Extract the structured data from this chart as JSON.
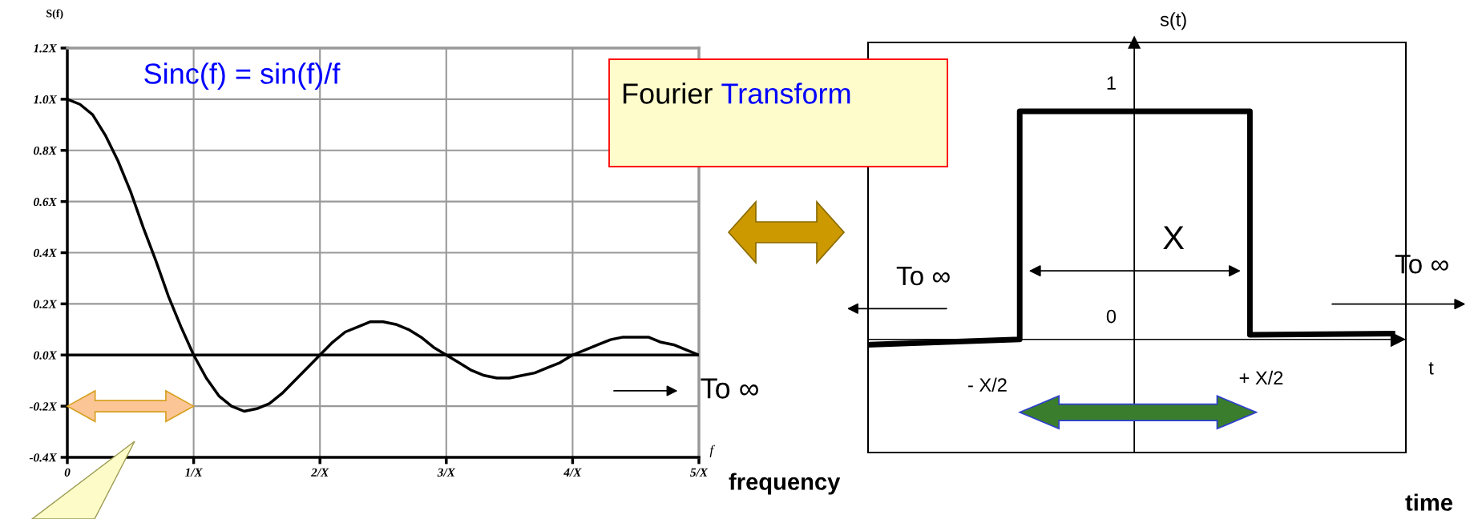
{
  "chart_data": [
    {
      "type": "line",
      "xlabel": "f",
      "ylabel": "S(f)",
      "x": [
        0,
        0.1,
        0.2,
        0.3,
        0.4,
        0.5,
        0.6,
        0.7,
        0.8,
        0.9,
        1.0,
        1.1,
        1.2,
        1.3,
        1.4,
        1.5,
        1.6,
        1.7,
        1.8,
        1.9,
        2.0,
        2.1,
        2.2,
        2.3,
        2.4,
        2.5,
        2.6,
        2.7,
        2.8,
        2.9,
        3.0,
        3.1,
        3.2,
        3.3,
        3.4,
        3.5,
        3.6,
        3.7,
        3.8,
        3.9,
        4.0,
        4.1,
        4.2,
        4.3,
        4.4,
        4.5,
        4.6,
        4.7,
        4.8,
        4.9,
        5.0
      ],
      "series": [
        {
          "color": "#000000",
          "values": [
            1.0,
            0.98,
            0.94,
            0.86,
            0.76,
            0.64,
            0.5,
            0.37,
            0.23,
            0.11,
            0,
            -0.09,
            -0.16,
            -0.2,
            -0.22,
            -0.21,
            -0.19,
            -0.15,
            -0.1,
            -0.05,
            0,
            0.05,
            0.09,
            0.11,
            0.13,
            0.13,
            0.12,
            0.1,
            0.07,
            0.03,
            0,
            -0.03,
            -0.06,
            -0.08,
            -0.09,
            -0.09,
            -0.08,
            -0.07,
            -0.05,
            -0.03,
            0,
            0.02,
            0.04,
            0.06,
            0.07,
            0.07,
            0.07,
            0.05,
            0.04,
            0.02,
            0
          ]
        }
      ],
      "xlim": [
        0,
        5
      ],
      "xticks": [
        0,
        {
          "value": 1,
          "label": "1/X"
        },
        {
          "value": 2,
          "label": "2/X"
        },
        {
          "value": 3,
          "label": "3/X"
        },
        {
          "value": 4,
          "label": "4/X"
        },
        {
          "value": 5,
          "label": "5/X"
        }
      ],
      "ylim": [
        -0.4,
        1.2
      ],
      "yticks": [
        {
          "value": -0.4,
          "label": "-0.4X"
        },
        {
          "value": -0.2,
          "label": "-0.2X"
        },
        {
          "value": 0,
          "label": "0.0X"
        },
        {
          "value": 0.2,
          "label": "0.2X"
        },
        {
          "value": 0.4,
          "label": "0.4X"
        },
        {
          "value": 0.6,
          "label": "0.6X"
        },
        {
          "value": 0.8,
          "label": "0.8X"
        },
        {
          "value": 1.0,
          "label": "1.0X"
        },
        {
          "value": 1.2,
          "label": "1.2X"
        }
      ],
      "grid": true,
      "legend": false,
      "marker": "none",
      "line_style": "solid",
      "ref_lines": [
        {
          "axis": "y",
          "value": 0,
          "color": "#000000"
        }
      ],
      "annotations": [
        "Sinc(f) = sin(f)/f",
        "To ∞",
        "frequency",
        "Fourier Transform"
      ]
    },
    {
      "type": "other",
      "xlabel": "t",
      "ylabel": "s(t)",
      "annotations": [
        "X",
        "To ∞",
        "To ∞",
        "time",
        "1",
        "0",
        "- X/2",
        "+ X/2"
      ]
    }
  ]
}
